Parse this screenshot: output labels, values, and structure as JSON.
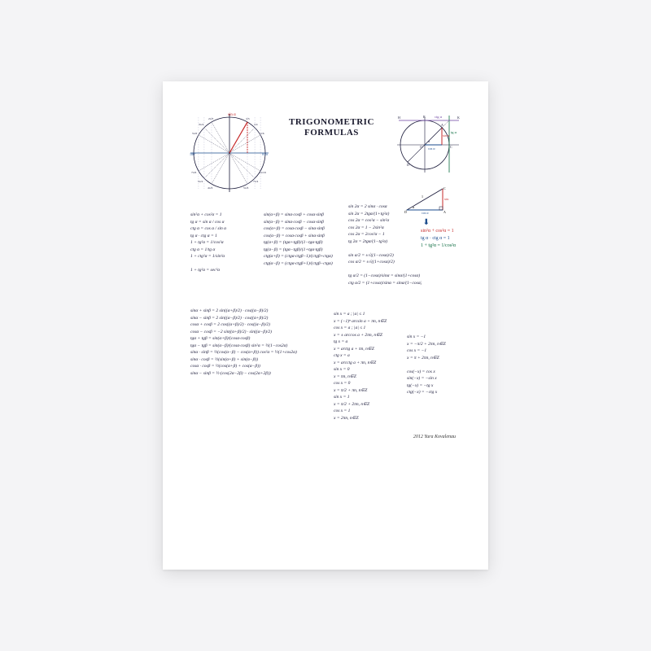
{
  "title_line1": "TRIGONOMETRIC",
  "title_line2": "FORMULAS",
  "author": "2012  Yura Kovalenau",
  "colors": {
    "bg": "#f4f4f6",
    "paper": "#ffffff",
    "ink": "#1a1a3a",
    "red": "#c62828",
    "blue": "#1a4b8c",
    "green": "#0a6b3f",
    "purple": "#6b3fa0",
    "grid": "#b8b8d0"
  },
  "unit_circle": {
    "radius": 44,
    "angles_deg": [
      0,
      30,
      45,
      60,
      90,
      120,
      135,
      150,
      180,
      210,
      225,
      240,
      270,
      300,
      315,
      330
    ],
    "axis_labels": [
      "0°/360°",
      "90°",
      "180°",
      "270°"
    ],
    "label_left": "π",
    "label_right": "0/2π",
    "sin_color": "#c62828",
    "cos_color": "#1a4b8c",
    "sin_label": "sin α",
    "cos_label": "cos α"
  },
  "trig_circle": {
    "radius": 30,
    "points": [
      "H",
      "B",
      "K",
      "O",
      "A",
      "C",
      "D"
    ],
    "ctg_label": "ctg α",
    "tg_label": "tg α",
    "sin_label": "sin α",
    "cos_label": "cos α",
    "ctg_color": "#6b3fa0",
    "tg_color": "#0a6b3f",
    "sin_color": "#c62828",
    "cos_color": "#1a4b8c"
  },
  "triangle": {
    "points": [
      "D",
      "A",
      "C"
    ],
    "sin_label": "sin α",
    "cos_label": "cos α",
    "hyp_label": "1"
  },
  "identities": [
    {
      "text": "sin²α + cos²α = 1",
      "color": "red"
    },
    {
      "text": "tg α · ctg α = 1",
      "color": "blue"
    },
    {
      "text": "1 + tg²α = 1/cos²α",
      "color": "green"
    }
  ],
  "col1": [
    "sin²α + cos²α = 1",
    "tg α = sin α / cos α",
    "ctg α = cos α / sin α",
    "tg α · ctg α = 1",
    "1 + tg²α = 1/cos²α",
    "ctg α = 1/tg α",
    "1 + ctg²α = 1/sin²α",
    "",
    "1 + tg²α = sec²α"
  ],
  "col2": [
    "sin(α+β) = sinα·cosβ + cosα·sinβ",
    "sin(α−β) = sinα·cosβ − cosα·sinβ",
    "cos(α+β) = cosα·cosβ − sinα·sinβ",
    "cos(α−β) = cosα·cosβ + sinα·sinβ",
    "tg(α+β) = (tgα+tgβ)/(1−tgα·tgβ)",
    "tg(α−β) = (tgα−tgβ)/(1+tgα·tgβ)",
    "ctg(α+β) = (ctgα·ctgβ−1)/(ctgβ+ctgα)",
    "ctg(α−β) = (ctgα·ctgβ+1)/(ctgβ−ctgα)"
  ],
  "col3": [
    "sin 2α = 2 sinα · cosα",
    "sin 2α = 2tgα/(1+tg²α)",
    "cos 2α = cos²α − sin²α",
    "cos 2α = 1 − 2sin²α",
    "cos 2α = 2cos²α − 1",
    "tg 2α = 2tgα/(1−tg²α)",
    "",
    "sin α/2 = ±√((1−cosα)/2)",
    "cos α/2 = ±√((1+cosα)/2)",
    "",
    "tg α/2 = (1−cosα)/sinα = sinα/(1+cosα)",
    "ctg α/2 = (1+cosα)/sinα = sinα/(1−cosα)"
  ],
  "block2": [
    "sinα + sinβ = 2 sin((α+β)/2) · cos((α−β)/2)",
    "sinα − sinβ = 2 sin((α−β)/2) · cos((α+β)/2)",
    "cosα + cosβ = 2 cos((α+β)/2) · cos((α−β)/2)",
    "cosα − cosβ = −2 sin((α+β)/2) · sin((α−β)/2)",
    "tgα + tgβ = sin(α+β)/(cosα·cosβ)",
    "tgα − tgβ = sin(α−β)/(cosα·cosβ)      sin²α = ½(1−cos2α)",
    "sinα · sinβ = ½(cos(α−β) − cos(α+β))   cos²α = ½(1+cos2α)",
    "sinα · cosβ = ½(sin(α+β) + sin(α−β))",
    "cosα · cosβ = ½(cos(α+β) + cos(α−β))",
    "sinα − sinβ = ½·(cos(2α−2β) − cos(2α+2β))"
  ],
  "block3": [
    "sin x = a ; |a| ≤ 1",
    "x = (−1)ⁿ arcsin a + πn, n∈Z",
    "cos x = a ; |a| ≤ 1",
    "x = ± arccos a + 2πn, n∈Z",
    "tg x = a",
    "x = arctg a + πn, n∈Z",
    "ctg x = a",
    "x = arcctg a + πn, n∈Z",
    "sin x = 0",
    "x = πn, n∈Z",
    "cos x = 0",
    "x = π/2 + πn, n∈Z",
    "sin x = 1",
    "x = π/2 + 2πn, n∈Z",
    "cos x = 1",
    "x = 2πn, n∈Z"
  ],
  "block4": [
    "sin x = −1",
    "x = −π/2 + 2πn, n∈Z",
    "cos x = −1",
    "x = π + 2πn, n∈Z",
    "",
    "cos(−x) = cos x",
    "sin(−x) = −sin x",
    "tg(−x) = −tg x",
    "ctg(−x) = −ctg x"
  ]
}
